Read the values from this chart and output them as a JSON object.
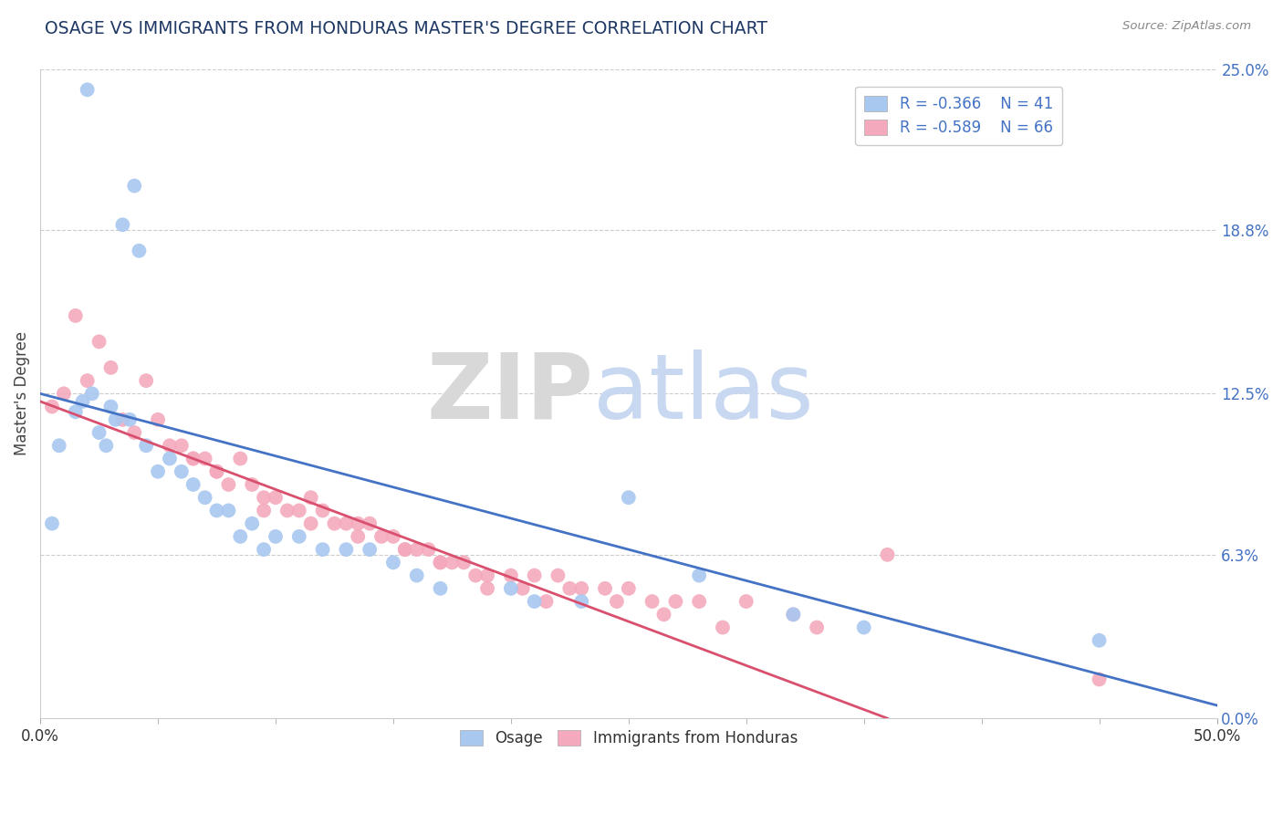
{
  "title": "OSAGE VS IMMIGRANTS FROM HONDURAS MASTER'S DEGREE CORRELATION CHART",
  "source": "Source: ZipAtlas.com",
  "ylabel": "Master's Degree",
  "xlim": [
    0.0,
    50.0
  ],
  "ylim": [
    0.0,
    25.0
  ],
  "yticks_right": [
    25.0,
    18.8,
    12.5,
    6.3,
    0.0
  ],
  "ytick_labels_right": [
    "25.0%",
    "18.8%",
    "12.5%",
    "6.3%",
    "0.0%"
  ],
  "blue_color": "#A8C8F0",
  "pink_color": "#F4AABC",
  "blue_line_color": "#4472C4",
  "pink_line_color": "#D94F6E",
  "legend_R_blue": "-0.366",
  "legend_N_blue": "41",
  "legend_R_pink": "-0.589",
  "legend_N_pink": "66",
  "title_color": "#1F3864",
  "right_tick_color": "#4472C4",
  "grid_color": "#CCCCCC",
  "blue_line_x0": 0.0,
  "blue_line_y0": 12.5,
  "blue_line_x1": 50.0,
  "blue_line_y1": 0.5,
  "pink_line_x0": 0.0,
  "pink_line_y0": 12.2,
  "pink_line_x1": 36.0,
  "pink_line_y1": 0.0,
  "osage_x": [
    2.0,
    4.0,
    3.5,
    4.2,
    2.2,
    1.8,
    1.5,
    0.8,
    0.5,
    2.5,
    3.0,
    3.8,
    4.5,
    5.5,
    6.0,
    7.0,
    8.0,
    9.0,
    10.0,
    11.0,
    12.0,
    13.0,
    14.0,
    15.0,
    16.0,
    17.0,
    20.0,
    23.0,
    25.0,
    28.0,
    32.0,
    3.2,
    2.8,
    5.0,
    6.5,
    7.5,
    8.5,
    9.5,
    21.0,
    35.0,
    45.0
  ],
  "osage_y": [
    24.2,
    20.5,
    19.0,
    18.0,
    12.5,
    12.2,
    11.8,
    10.5,
    7.5,
    11.0,
    12.0,
    11.5,
    10.5,
    10.0,
    9.5,
    8.5,
    8.0,
    7.5,
    7.0,
    7.0,
    6.5,
    6.5,
    6.5,
    6.0,
    5.5,
    5.0,
    5.0,
    4.5,
    8.5,
    5.5,
    4.0,
    11.5,
    10.5,
    9.5,
    9.0,
    8.0,
    7.0,
    6.5,
    4.5,
    3.5,
    3.0
  ],
  "honduras_x": [
    0.5,
    1.0,
    1.5,
    2.0,
    2.5,
    3.0,
    3.5,
    4.0,
    4.5,
    5.0,
    5.5,
    6.0,
    6.5,
    7.0,
    7.5,
    8.0,
    8.5,
    9.0,
    9.5,
    10.0,
    10.5,
    11.0,
    11.5,
    12.0,
    12.5,
    13.0,
    13.5,
    14.0,
    14.5,
    15.0,
    15.5,
    16.0,
    16.5,
    17.0,
    18.0,
    19.0,
    20.0,
    21.0,
    22.0,
    23.0,
    24.0,
    25.0,
    26.0,
    27.0,
    28.0,
    30.0,
    32.0,
    7.5,
    9.5,
    11.5,
    13.5,
    15.5,
    17.5,
    18.5,
    20.5,
    22.5,
    24.5,
    26.5,
    29.0,
    33.0,
    36.0,
    17.0,
    19.0,
    6.5,
    21.5,
    45.0
  ],
  "honduras_y": [
    12.0,
    12.5,
    15.5,
    13.0,
    14.5,
    13.5,
    11.5,
    11.0,
    13.0,
    11.5,
    10.5,
    10.5,
    10.0,
    10.0,
    9.5,
    9.0,
    10.0,
    9.0,
    8.5,
    8.5,
    8.0,
    8.0,
    8.5,
    8.0,
    7.5,
    7.5,
    7.5,
    7.5,
    7.0,
    7.0,
    6.5,
    6.5,
    6.5,
    6.0,
    6.0,
    5.5,
    5.5,
    5.5,
    5.5,
    5.0,
    5.0,
    5.0,
    4.5,
    4.5,
    4.5,
    4.5,
    4.0,
    9.5,
    8.0,
    7.5,
    7.0,
    6.5,
    6.0,
    5.5,
    5.0,
    5.0,
    4.5,
    4.0,
    3.5,
    3.5,
    6.3,
    6.0,
    5.0,
    10.0,
    4.5,
    1.5
  ]
}
